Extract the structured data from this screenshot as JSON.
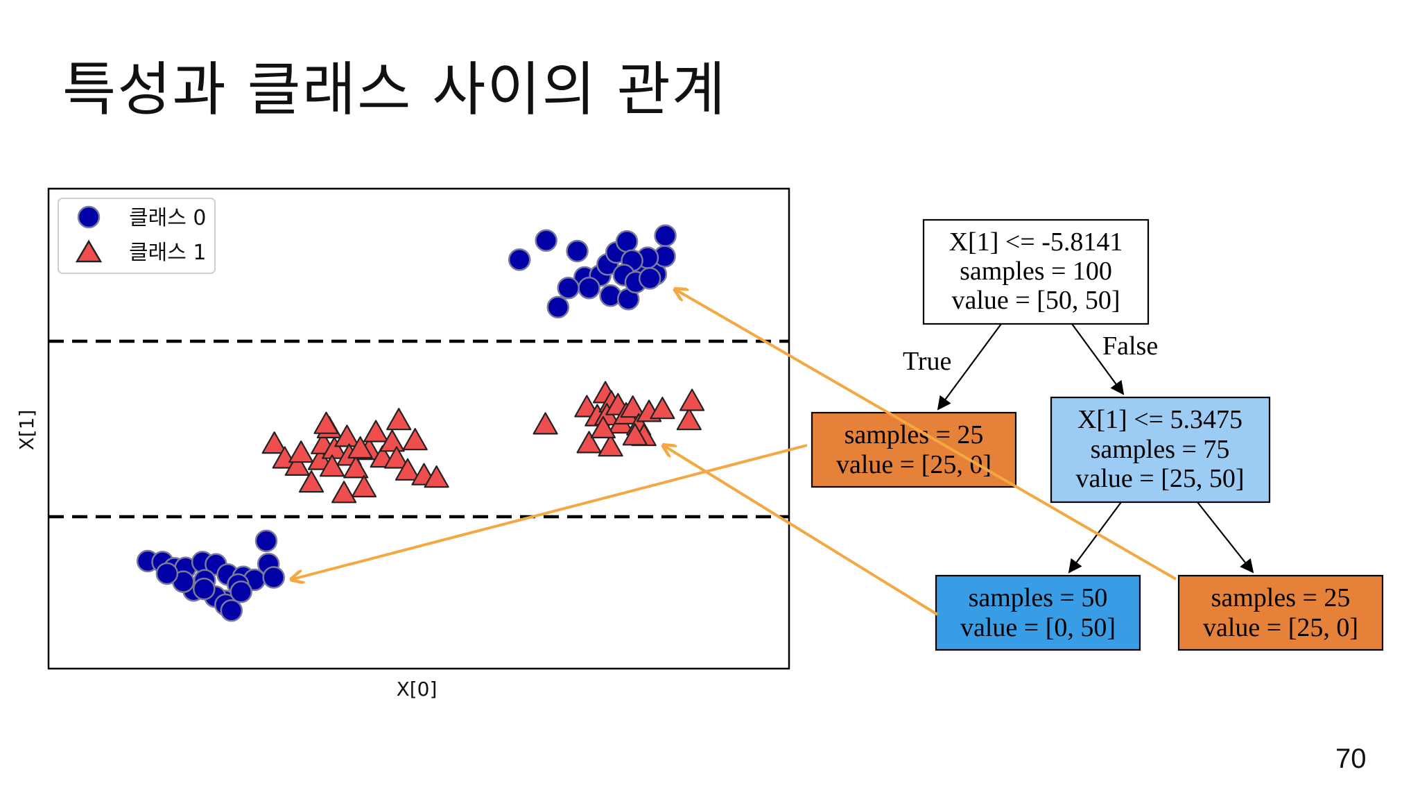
{
  "slide": {
    "title": "특성과 클래스 사이의 관계",
    "page_number": "70"
  },
  "colors": {
    "class0_fill": "#0000a6",
    "class0_stroke": "#7a7a9a",
    "class1_fill": "#ef4e4e",
    "class1_stroke": "#222222",
    "orange_leaf": "#e58139",
    "light_blue": "#9ccbf3",
    "blue_leaf": "#399de5",
    "arrow": "#f5a742"
  },
  "chart_data": {
    "type": "scatter",
    "xlabel": "X[0]",
    "ylabel": "X[1]",
    "legend": {
      "placement": "top-left",
      "entries": [
        {
          "label": "클래스 0",
          "marker": "circle"
        },
        {
          "label": "클래스 1",
          "marker": "triangle"
        }
      ]
    },
    "xlim": [
      0,
      100
    ],
    "ylim": [
      0,
      100
    ],
    "split_lines_y": [
      34,
      68
    ],
    "series": [
      {
        "marker": "circle",
        "points": [
          [
            63.6,
            85.2
          ],
          [
            67.2,
            89.2
          ],
          [
            71.4,
            87.0
          ],
          [
            72.4,
            81.5
          ],
          [
            74.5,
            81.9
          ],
          [
            75.5,
            84.2
          ],
          [
            76.7,
            86.7
          ],
          [
            78.1,
            89.0
          ],
          [
            79.8,
            84.4
          ],
          [
            82.0,
            82.2
          ],
          [
            83.3,
            90.2
          ],
          [
            83.2,
            85.9
          ],
          [
            80.9,
            85.6
          ],
          [
            78.8,
            85.0
          ],
          [
            77.7,
            82.0
          ],
          [
            75.9,
            77.7
          ],
          [
            78.3,
            77.0
          ],
          [
            73.0,
            79.3
          ],
          [
            70.2,
            79.3
          ],
          [
            68.8,
            75.3
          ],
          [
            79.3,
            80.5
          ],
          [
            81.2,
            81.3
          ],
          [
            13.4,
            22.4
          ],
          [
            15.4,
            22.2
          ],
          [
            17.0,
            20.9
          ],
          [
            18.5,
            21.0
          ],
          [
            20.8,
            22.2
          ],
          [
            22.6,
            21.7
          ],
          [
            24.2,
            19.6
          ],
          [
            26.3,
            19.1
          ],
          [
            27.8,
            18.5
          ],
          [
            29.4,
            26.6
          ],
          [
            29.7,
            21.8
          ],
          [
            30.4,
            19.0
          ],
          [
            25.6,
            17.5
          ],
          [
            23.8,
            14.1
          ],
          [
            22.5,
            15.0
          ],
          [
            19.6,
            16.3
          ],
          [
            18.2,
            18.1
          ],
          [
            16.0,
            19.8
          ],
          [
            21.1,
            18.4
          ],
          [
            23.9,
            13.3
          ],
          [
            26.0,
            16.0
          ],
          [
            21.0,
            16.6
          ],
          [
            24.7,
            12.1
          ]
        ]
      },
      {
        "marker": "triangle",
        "points": [
          [
            30.5,
            47.1
          ],
          [
            31.9,
            44.0
          ],
          [
            33.6,
            42.5
          ],
          [
            34.1,
            45.2
          ],
          [
            35.5,
            39.0
          ],
          [
            36.7,
            43.7
          ],
          [
            37.1,
            47.0
          ],
          [
            37.9,
            50.3
          ],
          [
            38.6,
            46.0
          ],
          [
            40.3,
            48.5
          ],
          [
            40.6,
            44.6
          ],
          [
            41.5,
            42.0
          ],
          [
            42.6,
            38.0
          ],
          [
            43.3,
            45.8
          ],
          [
            44.2,
            49.5
          ],
          [
            45.1,
            44.2
          ],
          [
            46.4,
            47.5
          ],
          [
            47.3,
            52.0
          ],
          [
            47.0,
            44.0
          ],
          [
            48.5,
            41.5
          ],
          [
            49.5,
            47.8
          ],
          [
            50.7,
            40.5
          ],
          [
            52.4,
            40.0
          ],
          [
            39.9,
            36.8
          ],
          [
            37.5,
            51.2
          ],
          [
            38.3,
            42.3
          ],
          [
            42.1,
            46.1
          ],
          [
            67.1,
            51.1
          ],
          [
            72.7,
            54.7
          ],
          [
            74.1,
            52.8
          ],
          [
            75.2,
            57.6
          ],
          [
            76.0,
            55.7
          ],
          [
            75.4,
            53.0
          ],
          [
            76.9,
            55.1
          ],
          [
            77.3,
            51.3
          ],
          [
            78.0,
            53.2
          ],
          [
            78.9,
            54.6
          ],
          [
            79.7,
            50.9
          ],
          [
            80.4,
            48.7
          ],
          [
            81.1,
            53.7
          ],
          [
            82.9,
            54.3
          ],
          [
            86.5,
            52.0
          ],
          [
            86.9,
            56.0
          ],
          [
            73.0,
            47.2
          ],
          [
            75.9,
            46.5
          ],
          [
            74.9,
            50.3
          ],
          [
            79.2,
            48.8
          ]
        ]
      }
    ]
  },
  "tree": {
    "root": {
      "line1": "X[1] <= -5.8141",
      "line2": "samples = 100",
      "line3": "value = [50, 50]"
    },
    "left_leaf": {
      "line1": "samples = 25",
      "line2": "value = [25, 0]"
    },
    "right_node": {
      "line1": "X[1] <= 5.3475",
      "line2": "samples = 75",
      "line3": "value = [25, 50]"
    },
    "leaf_blue": {
      "line1": "samples = 50",
      "line2": "value = [0, 50]"
    },
    "leaf_orange": {
      "line1": "samples = 25",
      "line2": "value = [25, 0]"
    },
    "edge_true": "True",
    "edge_false": "False"
  }
}
